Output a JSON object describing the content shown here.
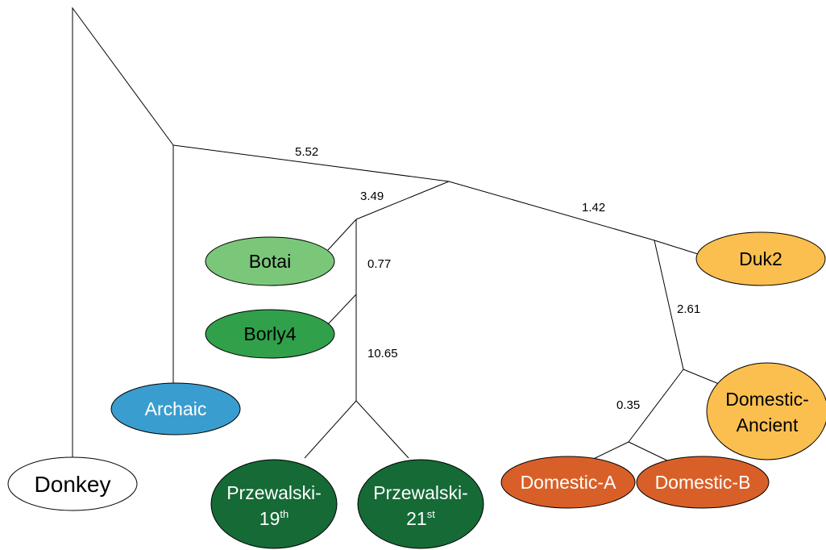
{
  "nodes": [
    {
      "label": "Donkey"
    },
    {
      "label": "Archaic"
    },
    {
      "label": "Botai"
    },
    {
      "label": "Borly4"
    },
    {
      "label": "Przewalski-",
      "label2": "19",
      "sup": "th"
    },
    {
      "label": "Przewalski-",
      "label2": "21",
      "sup": "st"
    },
    {
      "label": "Duk2"
    },
    {
      "label": "Domestic-",
      "label2": "Ancient"
    },
    {
      "label": "Domestic-A"
    },
    {
      "label": "Domestic-B"
    }
  ],
  "edge_labels": [
    "5.52",
    "3.49",
    "0.77",
    "10.65",
    "1.42",
    "2.61",
    "0.35"
  ]
}
